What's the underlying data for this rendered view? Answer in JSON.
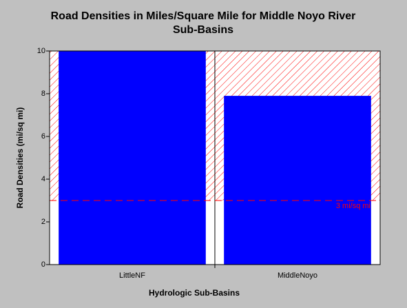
{
  "chart_data": {
    "type": "bar",
    "title": [
      "Road Densities in Miles/Square Mile for Middle Noyo River",
      "Sub-Basins"
    ],
    "x_label": "Hydrologic Sub-Basins",
    "y_label": "Road Densities (mi/sq mi)",
    "categories": [
      "LittleNF",
      "MiddleNoyo"
    ],
    "values": [
      10,
      7.9
    ],
    "color": "#0000ff",
    "ylim": [
      0,
      10
    ],
    "yticks": [
      0,
      2,
      4,
      6,
      8,
      10
    ],
    "threshold": 3,
    "threshold_label": "3 mi/sq mi",
    "threshold_color": "#ff0000"
  }
}
